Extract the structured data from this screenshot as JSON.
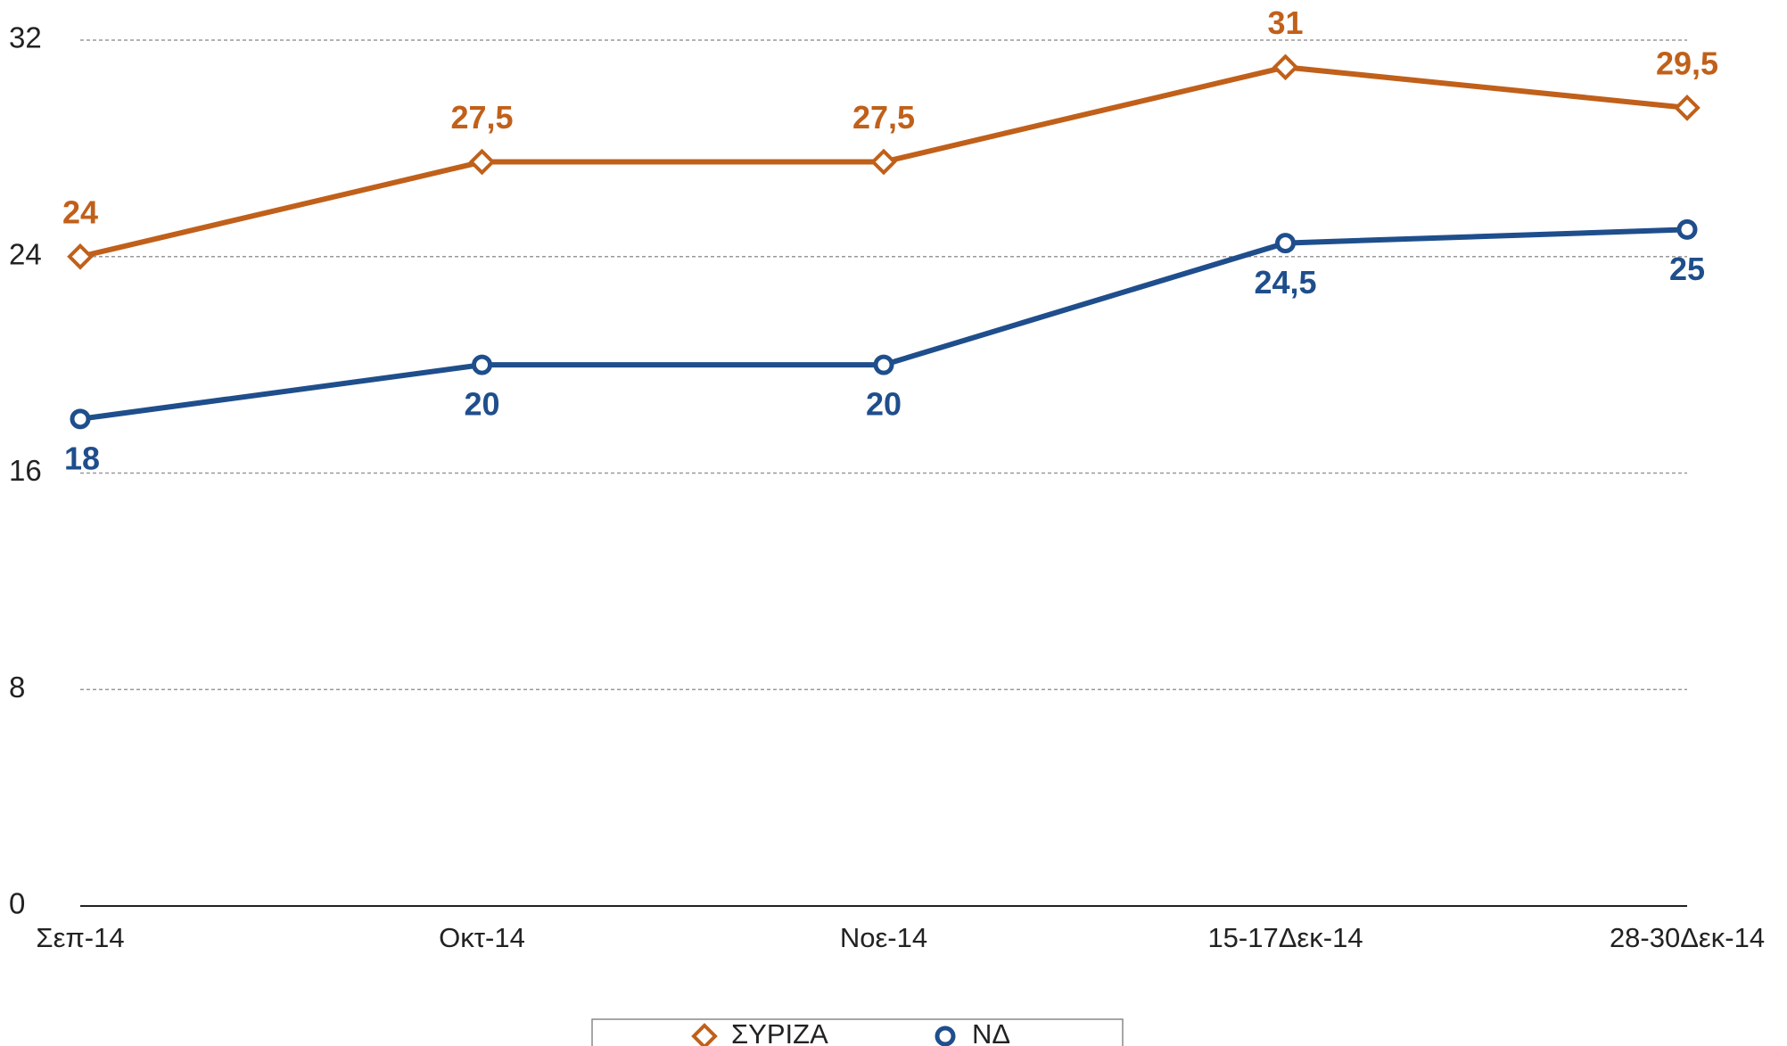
{
  "chart_data": {
    "type": "line",
    "categories": [
      "Σεπ-14",
      "Οκτ-14",
      "Νοε-14",
      "15-17Δεκ-14",
      "28-30Δεκ-14"
    ],
    "series": [
      {
        "name": "ΣΥΡΙΖΑ",
        "color": "#c0601a",
        "marker": "diamond",
        "values": [
          24,
          27.5,
          27.5,
          31,
          29.5
        ],
        "value_labels": [
          "24",
          "27,5",
          "27,5",
          "31",
          "29,5"
        ]
      },
      {
        "name": "ΝΔ",
        "color": "#1f4e8c",
        "marker": "circle",
        "values": [
          18,
          20,
          20,
          24.5,
          25
        ],
        "value_labels": [
          "18",
          "20",
          "20",
          "24,5",
          "25"
        ]
      }
    ],
    "ylim": [
      0,
      32
    ],
    "yticks": [
      0,
      8,
      16,
      24,
      32
    ],
    "grid": true,
    "legend": "bottom"
  }
}
